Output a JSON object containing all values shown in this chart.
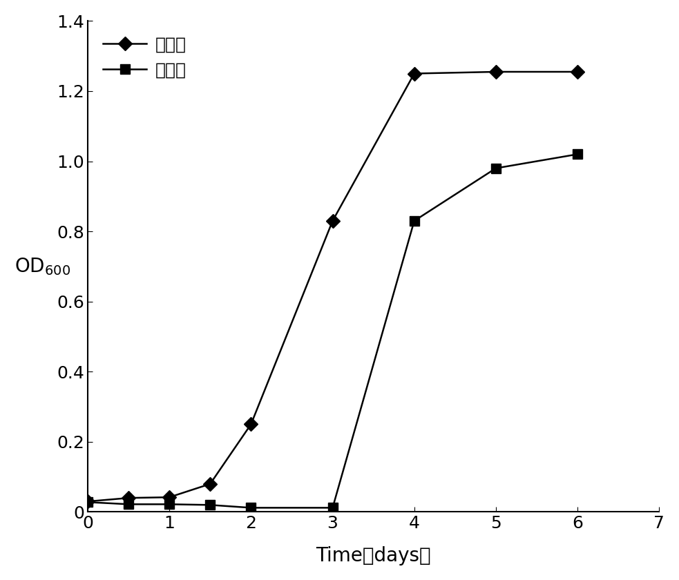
{
  "series1_label": "驯化后",
  "series2_label": "驯化前",
  "series1_x": [
    0,
    0.5,
    1,
    1.5,
    2,
    3,
    4,
    5,
    6
  ],
  "series1_y": [
    0.03,
    0.04,
    0.042,
    0.08,
    0.25,
    0.83,
    1.25,
    1.255,
    1.255
  ],
  "series2_x": [
    0,
    0.5,
    1,
    1.5,
    2,
    3,
    4,
    5,
    6
  ],
  "series2_y": [
    0.028,
    0.022,
    0.022,
    0.02,
    0.012,
    0.012,
    0.83,
    0.98,
    1.02
  ],
  "line_color": "#000000",
  "xlabel": "Time（days）",
  "ylabel_main": "OD",
  "ylabel_sub": "600",
  "xlim": [
    0,
    7
  ],
  "ylim": [
    0,
    1.4
  ],
  "xticks": [
    0,
    1,
    2,
    3,
    4,
    5,
    6,
    7
  ],
  "yticks": [
    0,
    0.2,
    0.4,
    0.6,
    0.8,
    1.0,
    1.2,
    1.4
  ],
  "xlabel_fontsize": 20,
  "ylabel_fontsize": 20,
  "tick_fontsize": 18,
  "legend_fontsize": 18,
  "background_color": "#ffffff"
}
